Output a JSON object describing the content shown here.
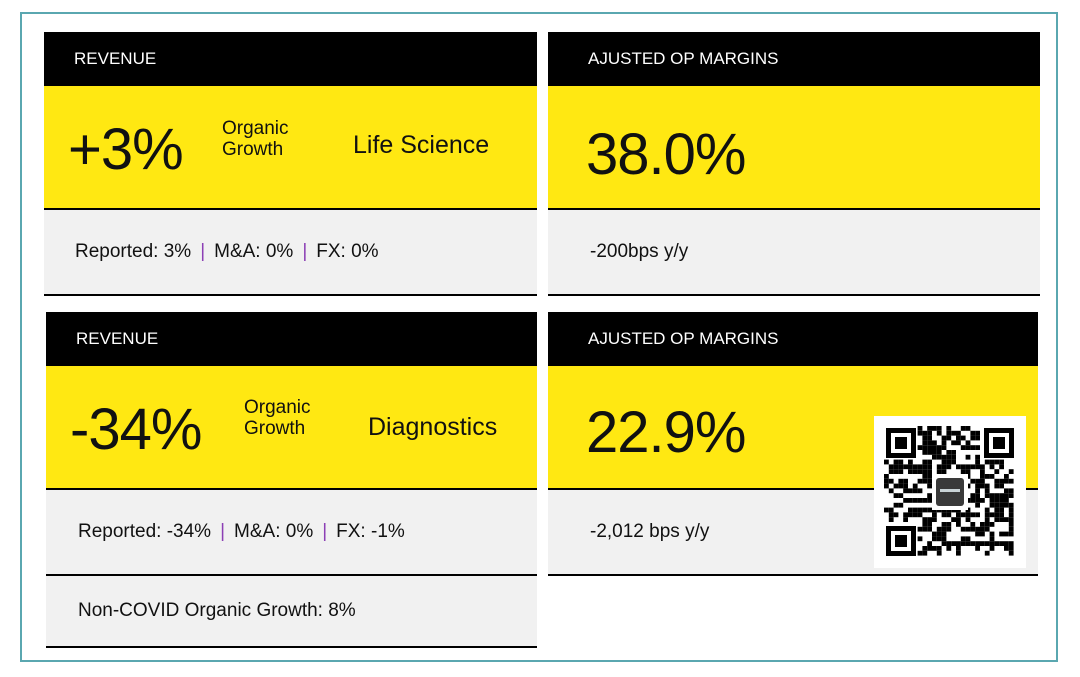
{
  "cards": {
    "ls_revenue": {
      "header": "REVENUE",
      "big_value": "+3%",
      "growth_label_line1": "Organic",
      "growth_label_line2": "Growth",
      "segment": "Life Science",
      "reported": "Reported: 3%",
      "ma": "M&A: 0%",
      "fx": "FX: 0%"
    },
    "ls_margin": {
      "header": "AJUSTED OP MARGINS",
      "big_value": "38.0%",
      "change": "-200bps y/y"
    },
    "dx_revenue": {
      "header": "REVENUE",
      "big_value": "-34%",
      "growth_label_line1": "Organic",
      "growth_label_line2": "Growth",
      "segment": "Diagnostics",
      "reported": "Reported: -34%",
      "ma": "M&A: 0%",
      "fx": "FX: -1%",
      "non_covid": "Non-COVID Organic Growth: 8%"
    },
    "dx_margin": {
      "header": "AJUSTED OP MARGINS",
      "big_value": "22.9%",
      "change": "-2,012 bps y/y"
    }
  },
  "separator": "|",
  "colors": {
    "header_bg": "#000000",
    "highlight_bg": "#ffe812",
    "detail_bg": "#f1f1f1",
    "separator": "#8c3fb5",
    "frame_border": "#5aa7b0"
  },
  "qr_code": "qr-code-icon"
}
